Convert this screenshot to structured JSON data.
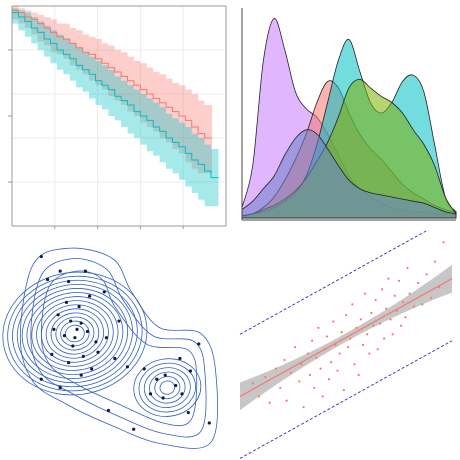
{
  "chart_data": [
    {
      "type": "area",
      "chart_kind": "survival-step-curves-with-confidence-bands",
      "title": "",
      "xlabel": "",
      "ylabel": "",
      "axes_frame": "left-and-bottom-lines",
      "grid": true,
      "xlim": [
        0,
        10
      ],
      "ylim": [
        0,
        1
      ],
      "series": [
        {
          "color": "#f8766d",
          "band_color": "#f8766d",
          "x": [
            0.0,
            0.3,
            0.6,
            0.9,
            1.2,
            1.5,
            1.8,
            2.1,
            2.4,
            2.7,
            3.0,
            3.3,
            3.6,
            3.9,
            4.2,
            4.5,
            4.8,
            5.1,
            5.4,
            5.7,
            6.0,
            6.3,
            6.6,
            6.9,
            7.2,
            7.5,
            7.8,
            8.1,
            8.4,
            8.7,
            9.0
          ],
          "y": [
            0.98,
            0.97,
            0.95,
            0.94,
            0.92,
            0.9,
            0.88,
            0.86,
            0.85,
            0.83,
            0.81,
            0.79,
            0.78,
            0.76,
            0.74,
            0.72,
            0.7,
            0.68,
            0.66,
            0.64,
            0.62,
            0.6,
            0.58,
            0.56,
            0.54,
            0.52,
            0.5,
            0.48,
            0.45,
            0.42,
            0.4
          ],
          "lower": [
            0.96,
            0.94,
            0.92,
            0.9,
            0.87,
            0.84,
            0.82,
            0.79,
            0.78,
            0.76,
            0.73,
            0.71,
            0.69,
            0.66,
            0.64,
            0.62,
            0.59,
            0.57,
            0.55,
            0.52,
            0.5,
            0.47,
            0.45,
            0.43,
            0.4,
            0.38,
            0.35,
            0.33,
            0.29,
            0.26,
            0.24
          ],
          "upper": [
            1.0,
            0.99,
            0.98,
            0.97,
            0.96,
            0.95,
            0.94,
            0.92,
            0.92,
            0.9,
            0.89,
            0.87,
            0.86,
            0.85,
            0.83,
            0.82,
            0.8,
            0.79,
            0.77,
            0.75,
            0.74,
            0.72,
            0.7,
            0.69,
            0.67,
            0.65,
            0.64,
            0.62,
            0.6,
            0.57,
            0.55
          ]
        },
        {
          "color": "#00bfc4",
          "band_color": "#00bfc4",
          "x": [
            0.0,
            0.3,
            0.6,
            0.9,
            1.2,
            1.5,
            1.8,
            2.1,
            2.4,
            2.7,
            3.0,
            3.3,
            3.6,
            3.9,
            4.2,
            4.5,
            4.8,
            5.1,
            5.4,
            5.7,
            6.0,
            6.3,
            6.6,
            6.9,
            7.2,
            7.5,
            7.8,
            8.1,
            8.4,
            8.7,
            9.0,
            9.3
          ],
          "y": [
            0.97,
            0.95,
            0.93,
            0.9,
            0.88,
            0.85,
            0.83,
            0.8,
            0.78,
            0.76,
            0.73,
            0.71,
            0.69,
            0.66,
            0.64,
            0.62,
            0.59,
            0.57,
            0.55,
            0.52,
            0.5,
            0.48,
            0.45,
            0.43,
            0.4,
            0.38,
            0.36,
            0.33,
            0.3,
            0.28,
            0.25,
            0.22
          ],
          "lower": [
            0.95,
            0.92,
            0.89,
            0.86,
            0.83,
            0.8,
            0.77,
            0.74,
            0.71,
            0.69,
            0.66,
            0.63,
            0.61,
            0.58,
            0.55,
            0.53,
            0.5,
            0.48,
            0.45,
            0.42,
            0.4,
            0.37,
            0.34,
            0.32,
            0.29,
            0.26,
            0.24,
            0.21,
            0.18,
            0.15,
            0.12,
            0.09
          ],
          "upper": [
            0.99,
            0.98,
            0.97,
            0.95,
            0.93,
            0.91,
            0.89,
            0.87,
            0.85,
            0.83,
            0.81,
            0.79,
            0.77,
            0.75,
            0.73,
            0.71,
            0.68,
            0.66,
            0.64,
            0.62,
            0.6,
            0.58,
            0.56,
            0.54,
            0.51,
            0.49,
            0.47,
            0.45,
            0.42,
            0.4,
            0.37,
            0.35
          ]
        }
      ]
    },
    {
      "type": "area",
      "chart_kind": "overlapping-density-curves",
      "title": "",
      "xlabel": "",
      "ylabel": "",
      "axes_frame": "bottom-and-left-lines",
      "grid": false,
      "xlim": [
        0,
        10
      ],
      "ylim": [
        0,
        1.0
      ],
      "x": [
        0,
        0.5,
        1,
        1.5,
        2,
        2.5,
        3,
        3.5,
        4,
        4.5,
        5,
        5.5,
        6,
        6.5,
        7,
        7.5,
        8,
        8.5,
        9,
        9.5,
        10
      ],
      "series": [
        {
          "color": "#c77cff",
          "values": [
            0.05,
            0.25,
            0.75,
            0.95,
            0.8,
            0.6,
            0.52,
            0.48,
            0.4,
            0.3,
            0.2,
            0.14,
            0.1,
            0.07,
            0.05,
            0.04,
            0.03,
            0.03,
            0.02,
            0.02,
            0.02
          ]
        },
        {
          "color": "#f8766d",
          "values": [
            0.01,
            0.02,
            0.05,
            0.1,
            0.18,
            0.28,
            0.4,
            0.55,
            0.65,
            0.62,
            0.5,
            0.4,
            0.33,
            0.28,
            0.22,
            0.16,
            0.12,
            0.09,
            0.06,
            0.04,
            0.03
          ]
        },
        {
          "color": "#00bfc4",
          "values": [
            0.01,
            0.02,
            0.03,
            0.05,
            0.08,
            0.12,
            0.2,
            0.35,
            0.55,
            0.75,
            0.85,
            0.7,
            0.55,
            0.5,
            0.55,
            0.65,
            0.68,
            0.6,
            0.35,
            0.1,
            0.03
          ]
        },
        {
          "color": "#7cae00",
          "values": [
            0.01,
            0.02,
            0.04,
            0.06,
            0.09,
            0.13,
            0.19,
            0.27,
            0.36,
            0.48,
            0.62,
            0.66,
            0.62,
            0.58,
            0.55,
            0.5,
            0.42,
            0.35,
            0.25,
            0.1,
            0.02
          ]
        },
        {
          "color": "#6b82c9",
          "values": [
            0.04,
            0.08,
            0.14,
            0.2,
            0.3,
            0.38,
            0.42,
            0.4,
            0.33,
            0.25,
            0.18,
            0.14,
            0.12,
            0.11,
            0.1,
            0.09,
            0.08,
            0.07,
            0.05,
            0.03,
            0.02
          ]
        }
      ]
    },
    {
      "type": "scatter",
      "chart_kind": "2d-density-contours-with-points",
      "title": "",
      "xlabel": "",
      "ylabel": "",
      "axes_frame": "none",
      "grid": false,
      "xlim": [
        0,
        10
      ],
      "ylim": [
        0,
        10
      ],
      "contour_color": "#3060c0",
      "point_color": "#0d1a4a",
      "clusters": [
        {
          "center": [
            2.9,
            5.6
          ],
          "rx": 0.45,
          "ry": 0.4,
          "levels": 14,
          "step": 0.23
        },
        {
          "center": [
            7.3,
            3.0
          ],
          "rx": 0.35,
          "ry": 0.32,
          "levels": 6,
          "step": 0.25
        }
      ],
      "points": [
        [
          1.3,
          9.3
        ],
        [
          1.6,
          8.2
        ],
        [
          2.2,
          8.6
        ],
        [
          2.6,
          8.1
        ],
        [
          3.4,
          8.6
        ],
        [
          4.3,
          7.6
        ],
        [
          3.6,
          7.4
        ],
        [
          2.5,
          7.1
        ],
        [
          3.1,
          6.9
        ],
        [
          2.1,
          6.5
        ],
        [
          2.7,
          6.2
        ],
        [
          3.2,
          6.1
        ],
        [
          1.9,
          5.8
        ],
        [
          2.4,
          5.5
        ],
        [
          3.5,
          5.7
        ],
        [
          3.9,
          5.2
        ],
        [
          2.8,
          5.0
        ],
        [
          4.4,
          5.4
        ],
        [
          1.8,
          4.6
        ],
        [
          3.3,
          4.5
        ],
        [
          4.0,
          4.7
        ],
        [
          2.6,
          4.2
        ],
        [
          3.7,
          3.9
        ],
        [
          4.8,
          4.4
        ],
        [
          5.0,
          6.2
        ],
        [
          3.2,
          3.6
        ],
        [
          1.3,
          3.4
        ],
        [
          2.2,
          3.0
        ],
        [
          4.5,
          1.9
        ],
        [
          5.7,
          1.0
        ],
        [
          6.2,
          3.9
        ],
        [
          6.8,
          3.4
        ],
        [
          7.2,
          3.6
        ],
        [
          7.7,
          3.1
        ],
        [
          8.0,
          2.7
        ],
        [
          7.1,
          2.5
        ],
        [
          6.5,
          2.7
        ],
        [
          8.4,
          3.8
        ],
        [
          7.9,
          4.4
        ],
        [
          8.3,
          1.8
        ],
        [
          9.3,
          1.3
        ],
        [
          8.8,
          5.1
        ],
        [
          5.4,
          4.0
        ],
        [
          2.9,
          5.4
        ],
        [
          3.0,
          5.8
        ]
      ]
    },
    {
      "type": "scatter",
      "chart_kind": "scatter-with-regression-line-and-prediction-bands",
      "title": "",
      "xlabel": "",
      "ylabel": "",
      "axes_frame": "none",
      "grid": false,
      "xlim": [
        0,
        10
      ],
      "ylim": [
        0,
        10
      ],
      "point_color": "#f8766d",
      "fit_color": "#f8766d",
      "ci_band_color": "#999999",
      "prediction_line_color": "#3030c0",
      "fit": {
        "intercept": 2.6,
        "slope": 0.55
      },
      "ci_halfwidth": {
        "ends": 0.65,
        "center": 0.2
      },
      "prediction_halfwidth": 2.9,
      "points": [
        [
          0.6,
          3.2
        ],
        [
          0.9,
          2.6
        ],
        [
          1.2,
          3.5
        ],
        [
          1.4,
          2.3
        ],
        [
          1.7,
          3.9
        ],
        [
          1.9,
          3.0
        ],
        [
          2.1,
          4.3
        ],
        [
          2.2,
          2.4
        ],
        [
          2.4,
          3.7
        ],
        [
          2.6,
          4.9
        ],
        [
          2.8,
          3.3
        ],
        [
          2.9,
          4.1
        ],
        [
          3.0,
          2.1
        ],
        [
          3.2,
          4.6
        ],
        [
          3.3,
          3.6
        ],
        [
          3.4,
          5.2
        ],
        [
          3.5,
          3.0
        ],
        [
          3.6,
          4.4
        ],
        [
          3.7,
          5.8
        ],
        [
          3.8,
          3.9
        ],
        [
          3.9,
          2.6
        ],
        [
          4.0,
          4.8
        ],
        [
          4.1,
          5.4
        ],
        [
          4.2,
          3.4
        ],
        [
          4.3,
          4.2
        ],
        [
          4.4,
          6.1
        ],
        [
          4.5,
          5.0
        ],
        [
          4.6,
          3.8
        ],
        [
          4.7,
          4.6
        ],
        [
          4.8,
          5.6
        ],
        [
          4.9,
          2.9
        ],
        [
          5.0,
          6.4
        ],
        [
          5.1,
          4.9
        ],
        [
          5.2,
          5.3
        ],
        [
          5.3,
          6.9
        ],
        [
          5.4,
          4.1
        ],
        [
          5.5,
          5.8
        ],
        [
          5.6,
          3.6
        ],
        [
          5.7,
          6.2
        ],
        [
          5.8,
          5.0
        ],
        [
          5.9,
          7.4
        ],
        [
          6.0,
          5.5
        ],
        [
          6.1,
          4.6
        ],
        [
          6.2,
          6.5
        ],
        [
          6.3,
          5.9
        ],
        [
          6.4,
          7.1
        ],
        [
          6.5,
          4.8
        ],
        [
          6.6,
          6.0
        ],
        [
          6.7,
          7.6
        ],
        [
          6.8,
          5.3
        ],
        [
          6.9,
          6.7
        ],
        [
          7.0,
          8.1
        ],
        [
          7.1,
          6.2
        ],
        [
          7.2,
          5.5
        ],
        [
          7.3,
          7.3
        ],
        [
          7.4,
          6.6
        ],
        [
          7.5,
          8.0
        ],
        [
          7.6,
          5.9
        ],
        [
          7.7,
          7.0
        ],
        [
          7.8,
          6.3
        ],
        [
          7.9,
          8.6
        ],
        [
          8.0,
          7.4
        ],
        [
          8.2,
          6.8
        ],
        [
          8.4,
          7.9
        ],
        [
          8.6,
          6.9
        ],
        [
          8.8,
          8.3
        ],
        [
          9.0,
          7.2
        ],
        [
          9.2,
          8.9
        ],
        [
          9.4,
          7.7
        ],
        [
          9.6,
          9.8
        ]
      ]
    }
  ]
}
